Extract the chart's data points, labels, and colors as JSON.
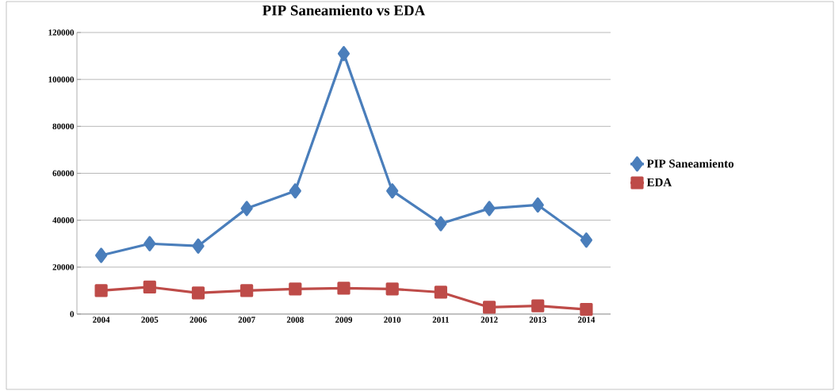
{
  "chart_data": {
    "type": "line",
    "title": "PIP Saneamiento vs EDA",
    "categories": [
      "2004",
      "2005",
      "2006",
      "2007",
      "2008",
      "2009",
      "2010",
      "2011",
      "2012",
      "2013",
      "2014"
    ],
    "series": [
      {
        "name": "PIP Saneamiento",
        "color": "#4a7ebb",
        "marker": "diamond",
        "values": [
          25000,
          30000,
          29000,
          45000,
          52500,
          111000,
          52500,
          38500,
          45000,
          46500,
          31500
        ]
      },
      {
        "name": "EDA",
        "color": "#be4b48",
        "marker": "square",
        "values": [
          10000,
          11500,
          9000,
          10000,
          10700,
          11000,
          10700,
          9300,
          2900,
          3500,
          2000
        ]
      }
    ],
    "ylim": [
      0,
      120000
    ],
    "yticks": [
      0,
      20000,
      40000,
      60000,
      80000,
      100000,
      120000
    ],
    "grid": "y",
    "legend": "right",
    "line_style": "solid"
  }
}
